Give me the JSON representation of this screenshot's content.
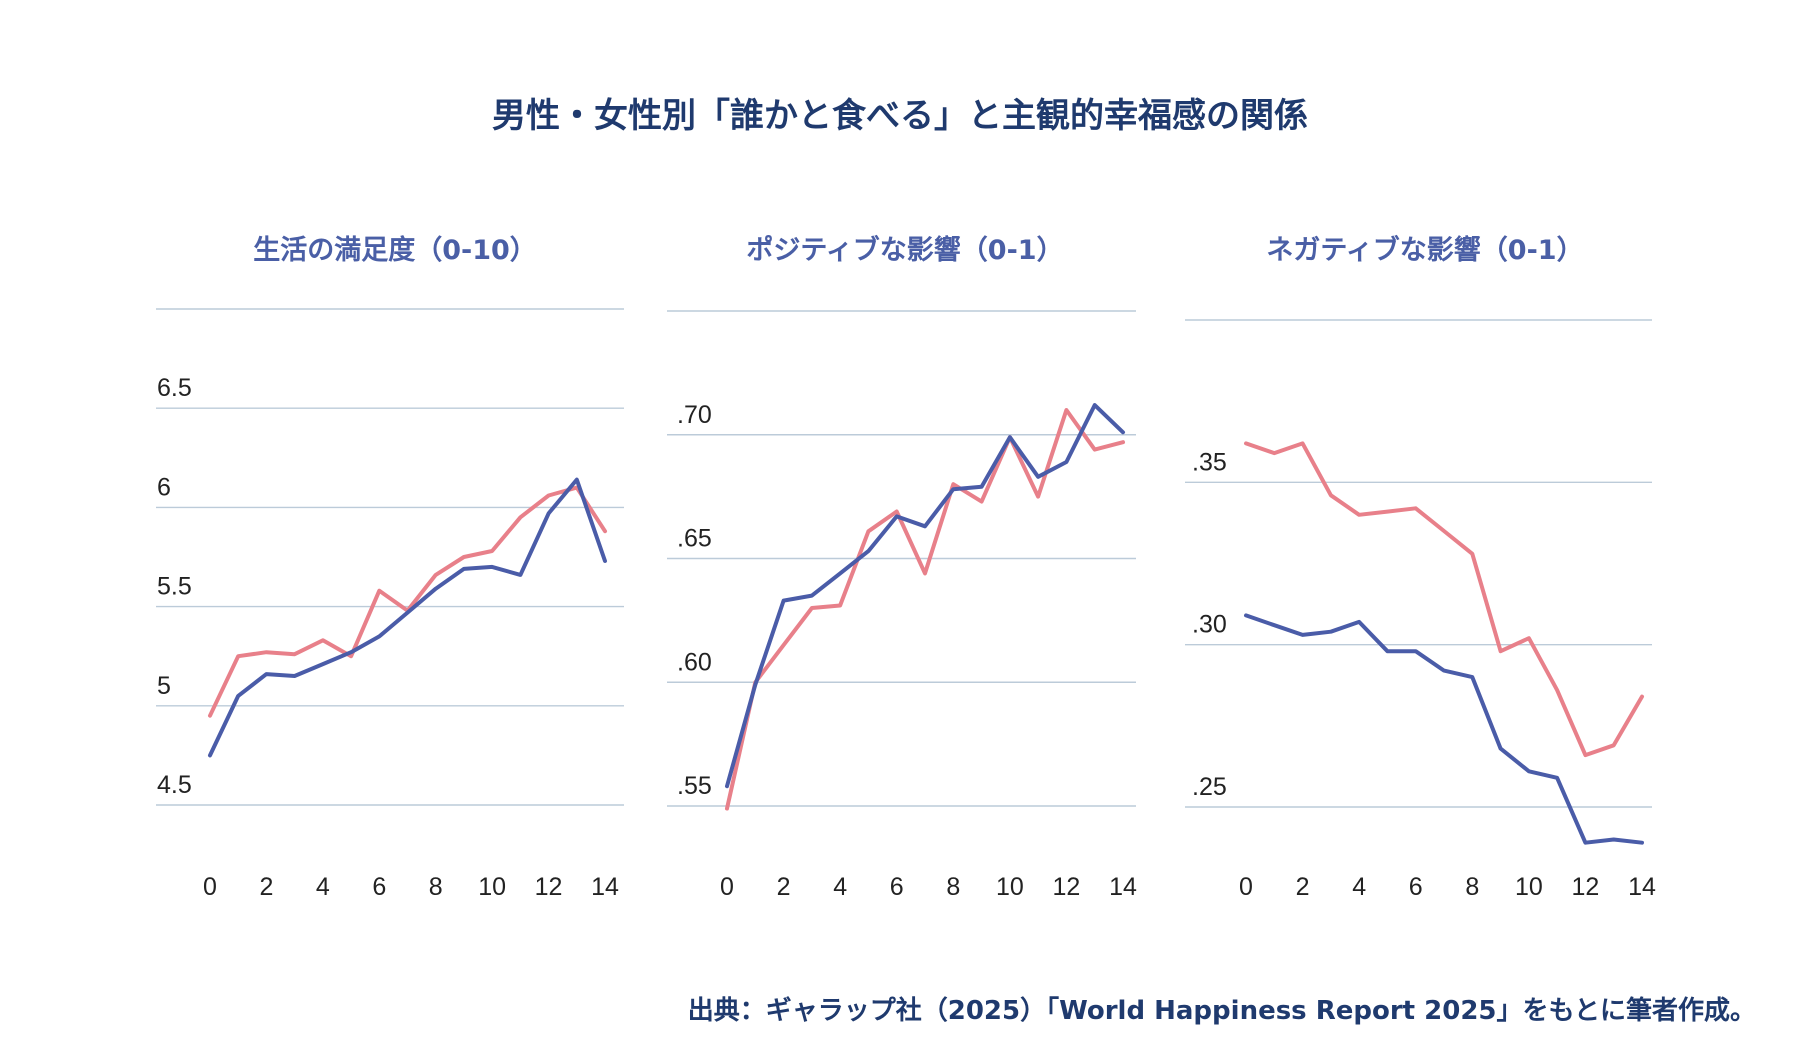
{
  "title": "男性・女性別「誰かと食べる」と主観的幸福感の関係",
  "source": "出典：ギャラップ社（2025）「World Happiness Report 2025」をもとに筆者作成。",
  "colors": {
    "title": "#1f3a6e",
    "panel_title": "#4a5fa6",
    "grid": "#bccbd9",
    "series_pink": "#e8808a",
    "series_blue": "#4a5ca8"
  },
  "chart_data": [
    {
      "type": "line",
      "title": "生活の満足度（0-10）",
      "x": [
        0,
        1,
        2,
        3,
        4,
        5,
        6,
        7,
        8,
        9,
        10,
        11,
        12,
        13,
        14
      ],
      "xticks": [
        0,
        2,
        4,
        6,
        8,
        10,
        12,
        14
      ],
      "xtick_labels": [
        "0",
        "2",
        "4",
        "6",
        "8",
        "10",
        "12",
        "14"
      ],
      "ylim": [
        4.5,
        7.0
      ],
      "yticks": [
        4.5,
        5,
        5.5,
        6,
        6.5
      ],
      "ytick_labels": [
        "4.5",
        "5",
        "5.5",
        "6",
        "6.5"
      ],
      "gridlines": [
        4.5,
        5.0,
        5.5,
        6.0,
        6.5,
        7.0
      ],
      "grid": true,
      "legend": "none",
      "series": [
        {
          "color": "#e8808a",
          "values": [
            4.95,
            5.25,
            5.27,
            5.26,
            5.33,
            5.25,
            5.58,
            5.48,
            5.66,
            5.75,
            5.78,
            5.95,
            6.06,
            6.1,
            5.88
          ]
        },
        {
          "color": "#4a5ca8",
          "values": [
            4.75,
            5.05,
            5.16,
            5.15,
            5.21,
            5.27,
            5.35,
            5.47,
            5.59,
            5.69,
            5.7,
            5.66,
            5.97,
            6.14,
            5.73
          ]
        }
      ]
    },
    {
      "type": "line",
      "title": "ポジティブな影響（0-1）",
      "x": [
        0,
        1,
        2,
        3,
        4,
        5,
        6,
        7,
        8,
        9,
        10,
        11,
        12,
        13,
        14
      ],
      "xticks": [
        0,
        2,
        4,
        6,
        8,
        10,
        12,
        14
      ],
      "xtick_labels": [
        "0",
        "2",
        "4",
        "6",
        "8",
        "10",
        "12",
        "14"
      ],
      "ylim": [
        0.55,
        0.75
      ],
      "yticks": [
        0.55,
        0.6,
        0.65,
        0.7
      ],
      "ytick_labels": [
        ".55",
        ".60",
        ".65",
        ".70"
      ],
      "gridlines": [
        0.55,
        0.6,
        0.65,
        0.7,
        0.75
      ],
      "grid": true,
      "legend": "none",
      "series": [
        {
          "color": "#e8808a",
          "values": [
            0.549,
            0.6,
            0.615,
            0.63,
            0.631,
            0.661,
            0.669,
            0.644,
            0.68,
            0.673,
            0.699,
            0.675,
            0.71,
            0.694,
            0.697
          ]
        },
        {
          "color": "#4a5ca8",
          "values": [
            0.558,
            0.599,
            0.633,
            0.635,
            0.644,
            0.653,
            0.667,
            0.663,
            0.678,
            0.679,
            0.699,
            0.683,
            0.689,
            0.712,
            0.701
          ]
        }
      ]
    },
    {
      "type": "line",
      "title": "ネガティブな影響（0-1）",
      "x": [
        0,
        1,
        2,
        3,
        4,
        5,
        6,
        7,
        8,
        9,
        10,
        11,
        12,
        13,
        14
      ],
      "xticks": [
        0,
        2,
        4,
        6,
        8,
        10,
        12,
        14
      ],
      "xtick_labels": [
        "0",
        "2",
        "4",
        "6",
        "8",
        "10",
        "12",
        "14"
      ],
      "ylim": [
        0.25,
        0.4
      ],
      "yticks": [
        0.25,
        0.3,
        0.35
      ],
      "ytick_labels": [
        ".25",
        ".30",
        ".35"
      ],
      "gridlines": [
        0.25,
        0.3,
        0.35,
        0.4
      ],
      "grid": true,
      "legend": "none",
      "series": [
        {
          "color": "#e8808a",
          "values": [
            0.362,
            0.359,
            0.362,
            0.346,
            0.34,
            0.341,
            0.342,
            0.335,
            0.328,
            0.298,
            0.302,
            0.286,
            0.266,
            0.269,
            0.284
          ]
        },
        {
          "color": "#4a5ca8",
          "values": [
            0.309,
            0.306,
            0.303,
            0.304,
            0.307,
            0.298,
            0.298,
            0.292,
            0.29,
            0.268,
            0.261,
            0.259,
            0.239,
            0.24,
            0.239
          ]
        }
      ]
    }
  ]
}
